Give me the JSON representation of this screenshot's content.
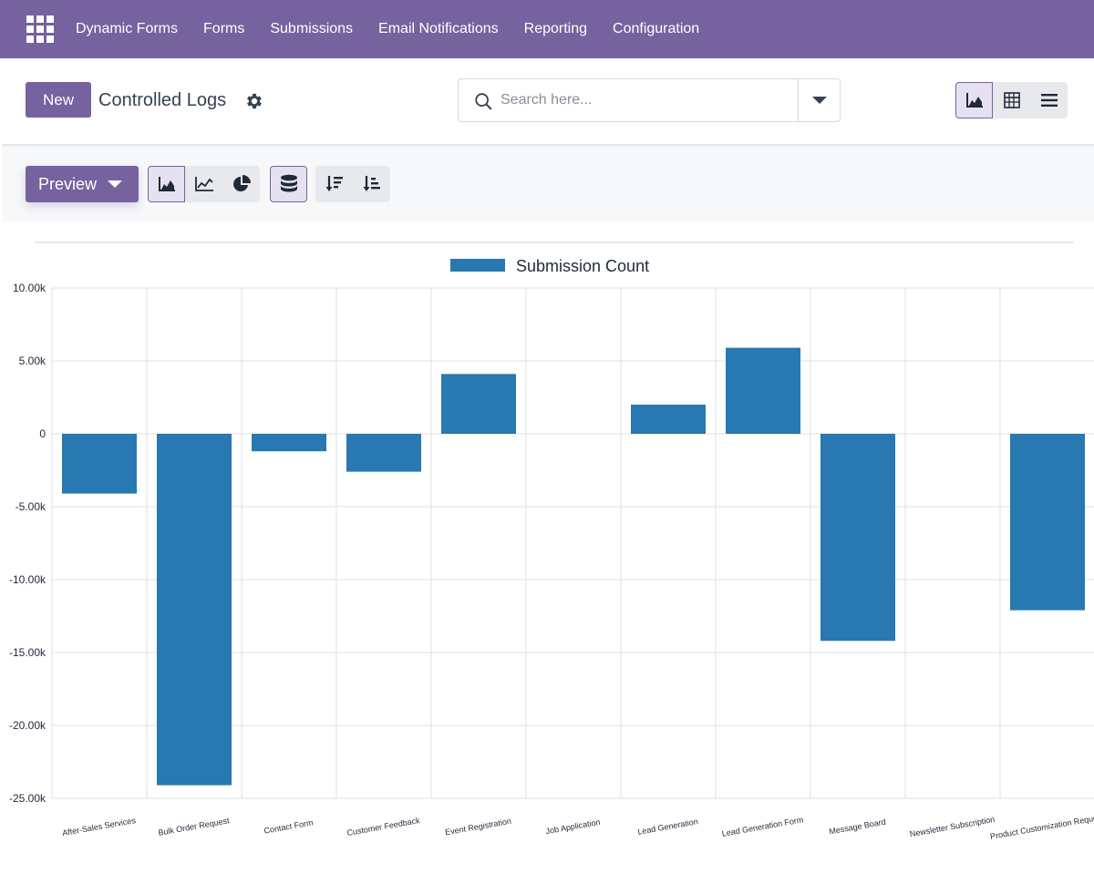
{
  "navbar": {
    "brand": "Dynamic Forms",
    "items": [
      {
        "label": "Forms"
      },
      {
        "label": "Submissions"
      },
      {
        "label": "Email Notifications"
      },
      {
        "label": "Reporting"
      },
      {
        "label": "Configuration"
      }
    ],
    "bg_color": "#75629e"
  },
  "control_panel": {
    "new_label": "New",
    "title": "Controlled Logs",
    "search": {
      "value": "",
      "placeholder": "Search here..."
    },
    "views": [
      {
        "icon": "graph-icon",
        "active": true
      },
      {
        "icon": "pivot-icon",
        "active": false
      },
      {
        "icon": "list-icon",
        "active": false
      }
    ]
  },
  "toolbar": {
    "preview_label": "Preview",
    "chart_types": [
      {
        "icon": "bar-chart-icon",
        "active": true
      },
      {
        "icon": "line-chart-icon",
        "active": false
      },
      {
        "icon": "pie-chart-icon",
        "active": false
      }
    ],
    "stacked": {
      "icon": "database-stack-icon",
      "active": true
    },
    "sort": [
      {
        "icon": "sort-descending-icon"
      },
      {
        "icon": "sort-ascending-icon"
      }
    ]
  },
  "chart_data": {
    "type": "bar",
    "legend_position": "top-center",
    "grid": true,
    "series": [
      {
        "name": "Submission Count",
        "color": "#2878b1",
        "values": [
          -4100,
          -24100,
          -1200,
          -2600,
          4100,
          0,
          2000,
          5900,
          -14200,
          0,
          -12100
        ]
      }
    ],
    "categories": [
      "After-Sales Services",
      "Bulk Order Request",
      "Contact Form",
      "Customer Feedback",
      "Event Registration",
      "Job Application",
      "Lead Generation",
      "Lead Generation Form",
      "Message Board",
      "Newsletter Subscription",
      "Product Customization Request"
    ],
    "ylim": [
      -25000,
      10000
    ],
    "yticks": [
      10000,
      5000,
      0,
      -5000,
      -10000,
      -15000,
      -20000,
      -25000
    ],
    "ytick_labels": [
      "10.00k",
      "5.00k",
      "0",
      "-5.00k",
      "-10.00k",
      "-15.00k",
      "-20.00k",
      "-25.00k"
    ]
  }
}
